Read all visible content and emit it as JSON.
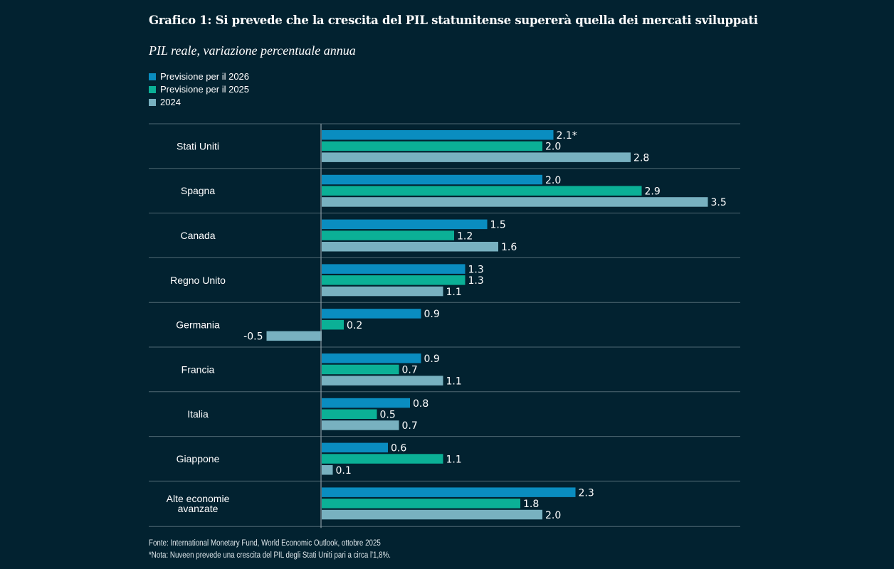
{
  "chart_data": {
    "type": "bar",
    "orientation": "horizontal",
    "title": "Grafico 1: Si prevede che la crescita del PIL statunitense supererà quella dei mercati sviluppati",
    "subtitle": "PIL reale, variazione percentuale annua",
    "categories": [
      "Stati Uniti",
      "Spagna",
      "Canada",
      "Regno Unito",
      "Germania",
      "Francia",
      "Italia",
      "Giappone",
      "Alte economie avanzate"
    ],
    "series": [
      {
        "name": "Previsione per il 2026",
        "color": "#0a8dc0",
        "values": [
          2.1,
          2.0,
          1.5,
          1.3,
          0.9,
          0.9,
          0.8,
          0.6,
          2.3
        ],
        "labels": [
          "2.1*",
          "2.0",
          "1.5",
          "1.3",
          "0.9",
          "0.9",
          "0.8",
          "0.6",
          "2.3"
        ]
      },
      {
        "name": "Previsione per il 2025",
        "color": "#0bb096",
        "values": [
          2.0,
          2.9,
          1.2,
          1.3,
          0.2,
          0.7,
          0.5,
          1.1,
          1.8
        ],
        "labels": [
          "2.0",
          "2.9",
          "1.2",
          "1.3",
          "0.2",
          "0.7",
          "0.5",
          "1.1",
          "1.8"
        ]
      },
      {
        "name": "2024",
        "color": "#78b1c0",
        "values": [
          2.8,
          3.5,
          1.6,
          1.1,
          -0.5,
          1.1,
          0.7,
          0.1,
          2.0
        ],
        "labels": [
          "2.8",
          "3.5",
          "1.6",
          "1.1",
          "-0.5",
          "1.1",
          "0.7",
          "0.1",
          "2.0"
        ]
      }
    ],
    "xlim": [
      -0.5,
      3.5
    ],
    "grid": false,
    "legend_position": "top-left",
    "source": "Fonte: International Monetary Fund, World Economic Outlook, ottobre 2025",
    "note": "*Nota: Nuveen prevede una crescita del PIL degli Stati Uniti pari a circa l'1,8%."
  }
}
